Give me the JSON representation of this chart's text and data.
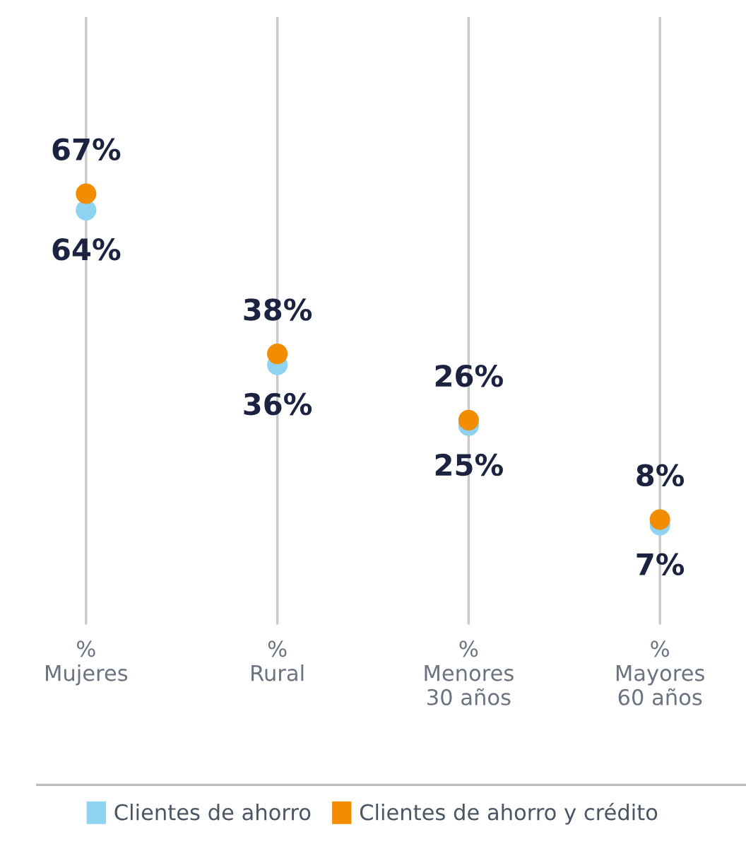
{
  "chart_data": {
    "type": "scatter",
    "categories": [
      "%\nMujeres",
      "%\nRural",
      "%\nMenores\n30 años",
      "%\nMayores\n60 años"
    ],
    "ylim": [
      -11,
      99
    ],
    "tick_labels": "x",
    "grid": "x",
    "legend": "bottom",
    "marker": "circle",
    "series": [
      {
        "name": "Clientes de ahorro",
        "color": "#8fd3f2",
        "values": [
          64,
          36,
          25,
          7
        ],
        "value_labels": [
          "64%",
          "36%",
          "25%",
          "7%"
        ]
      },
      {
        "name": "Clientes de ahorro y crédito",
        "color": "#f28c00",
        "values": [
          67,
          38,
          26,
          8
        ],
        "value_labels": [
          "67%",
          "38%",
          "26%",
          "8%"
        ]
      }
    ]
  }
}
